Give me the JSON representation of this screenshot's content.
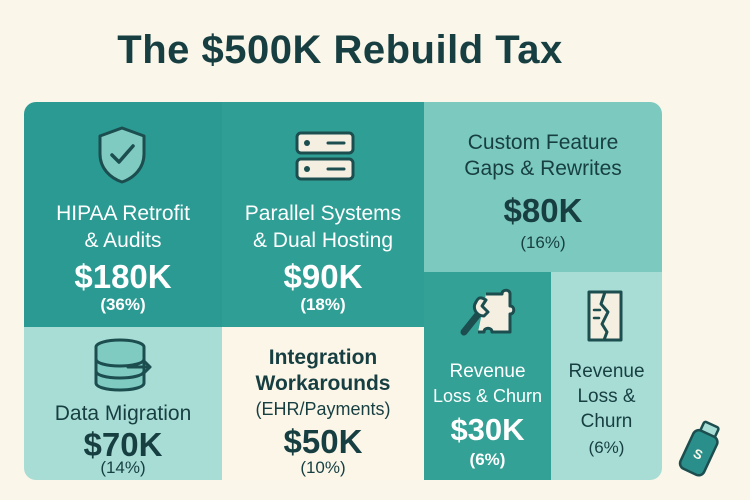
{
  "title": "The $500K Rebuild Tax",
  "tiles": [
    {
      "label_1": "HIPAA Retrofit",
      "label_2": "& Audits",
      "amount": "$180K",
      "percent": "(36%)",
      "icon": "shield-check-icon"
    },
    {
      "label_1": "Parallel Systems",
      "label_2": "& Dual Hosting",
      "amount": "$90K",
      "percent": "(18%)",
      "icon": "server-icon"
    },
    {
      "label_1": "Custom Feature",
      "label_2": "Gaps & Rewrites",
      "amount": "$80K",
      "percent": "(16%)"
    },
    {
      "label_1": "Data Migration",
      "amount": "$70K",
      "percent": "(14%)",
      "icon": "database-icon"
    },
    {
      "label_1": "Integration",
      "label_2": "Workarounds",
      "sub": "(EHR/Payments)",
      "amount": "$50K",
      "percent": "(10%)"
    },
    {
      "label_1": "Revenue",
      "label_2": "Loss & Churn",
      "amount": "$30K",
      "percent": "(6%)",
      "icon": "puzzle-wrench-icon"
    },
    {
      "label_1": "Revenue",
      "label_2": "Loss &",
      "label_3": "Churn",
      "percent": "(6%)",
      "icon": "torn-document-icon"
    }
  ],
  "usb_letter": "S"
}
